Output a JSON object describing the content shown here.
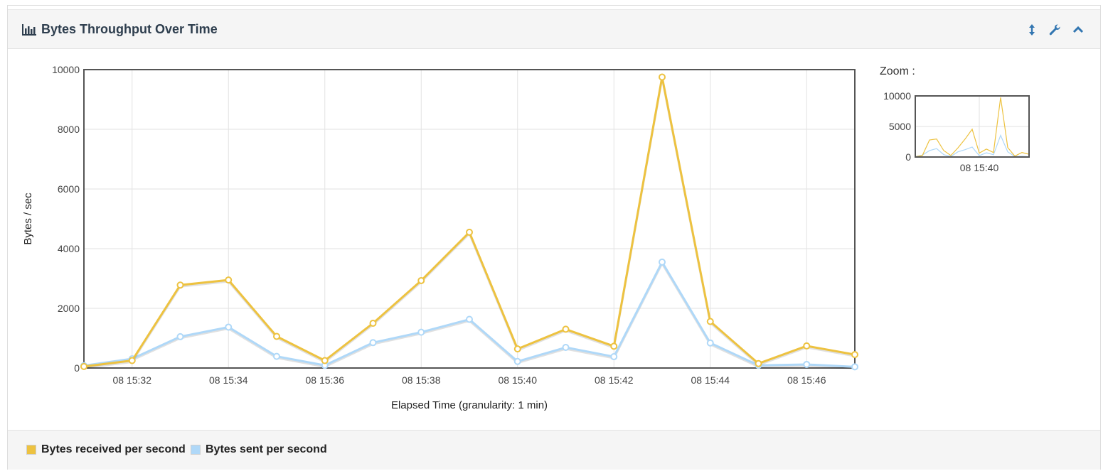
{
  "panel": {
    "title": "Bytes Throughput Over Time",
    "title_icon": "bar-chart-icon",
    "actions": [
      {
        "name": "resize-vertical-icon"
      },
      {
        "name": "wrench-icon"
      },
      {
        "name": "chevron-up-icon"
      }
    ]
  },
  "zoom": {
    "label": "Zoom :",
    "ylim": [
      0,
      10000
    ],
    "yticks": [
      "10000",
      "5000",
      "0"
    ],
    "xtick": "08 15:40"
  },
  "legend": [
    {
      "label": "Bytes received per second",
      "color": "#edc240"
    },
    {
      "label": "Bytes sent per second",
      "color": "#afd8f8"
    }
  ],
  "chart_data": {
    "type": "line",
    "xlabel": "Elapsed Time (granularity: 1 min)",
    "ylabel": "Bytes / sec",
    "ylim": [
      0,
      10000
    ],
    "y_ticks": [
      "10000",
      "8000",
      "6000",
      "4000",
      "2000",
      "0"
    ],
    "x": [
      "08 15:31",
      "08 15:32",
      "08 15:33",
      "08 15:34",
      "08 15:35",
      "08 15:36",
      "08 15:37",
      "08 15:38",
      "08 15:39",
      "08 15:40",
      "08 15:41",
      "08 15:42",
      "08 15:43",
      "08 15:44",
      "08 15:45",
      "08 15:46",
      "08 15:47"
    ],
    "x_tick_labels": [
      "08 15:32",
      "08 15:34",
      "08 15:36",
      "08 15:38",
      "08 15:40",
      "08 15:42",
      "08 15:44",
      "08 15:46"
    ],
    "grid": true,
    "series": [
      {
        "name": "Bytes received per second",
        "color": "#edc240",
        "values": [
          50,
          250,
          2780,
          2950,
          1060,
          250,
          1500,
          2930,
          4550,
          640,
          1300,
          730,
          9750,
          1560,
          150,
          740,
          450
        ]
      },
      {
        "name": "Bytes sent per second",
        "color": "#afd8f8",
        "values": [
          80,
          310,
          1050,
          1370,
          390,
          90,
          850,
          1200,
          1630,
          220,
          690,
          380,
          3550,
          840,
          90,
          120,
          40
        ]
      }
    ]
  }
}
